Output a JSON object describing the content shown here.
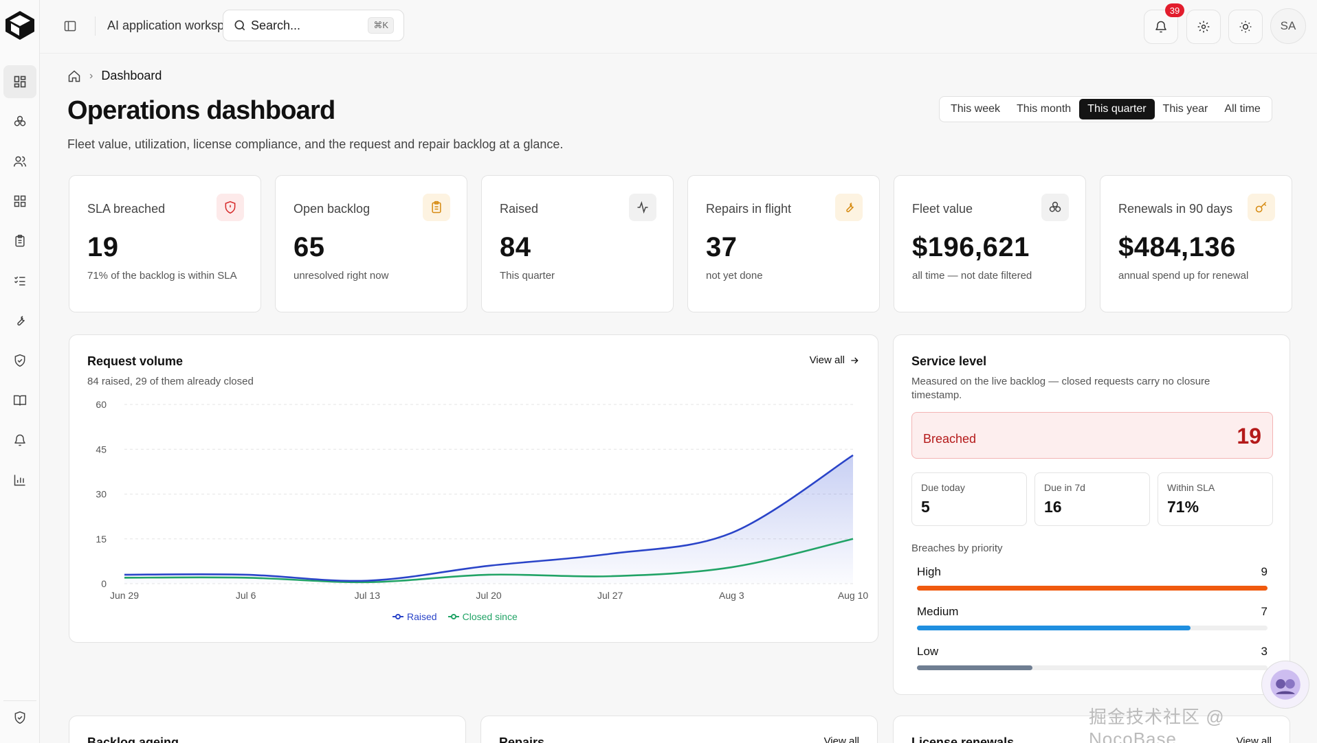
{
  "topbar": {
    "workspace_title": "AI application workspace",
    "search_placeholder": "Search...",
    "search_shortcut": "⌘K",
    "notification_count": "39",
    "avatar_initials": "SA"
  },
  "breadcrumb": {
    "current": "Dashboard"
  },
  "page": {
    "title": "Operations dashboard",
    "subtitle": "Fleet value, utilization, license compliance, and the request and repair backlog at a glance."
  },
  "range_options": [
    "This week",
    "This month",
    "This quarter",
    "This year",
    "All time"
  ],
  "range_selected": "This quarter",
  "kpis": [
    {
      "label": "SLA breached",
      "value": "19",
      "note": "71% of the backlog is within SLA",
      "icon": "shield-alert-icon",
      "tint": "#fdeaea",
      "color": "#d62828"
    },
    {
      "label": "Open backlog",
      "value": "65",
      "note": "unresolved right now",
      "icon": "clipboard-icon",
      "tint": "#fdf3e1",
      "color": "#d68a10"
    },
    {
      "label": "Raised",
      "value": "84",
      "note": "This quarter",
      "icon": "activity-icon",
      "tint": "#f1f1f1",
      "color": "#444444"
    },
    {
      "label": "Repairs in flight",
      "value": "37",
      "note": "not yet done",
      "icon": "wrench-icon",
      "tint": "#fdf3e1",
      "color": "#d68a10"
    },
    {
      "label": "Fleet value",
      "value": "$196,621",
      "note": "all time — not date filtered",
      "icon": "boxes-icon",
      "tint": "#f1f1f1",
      "color": "#444444"
    },
    {
      "label": "Renewals in 90 days",
      "value": "$484,136",
      "note": "annual spend up for renewal",
      "icon": "key-icon",
      "tint": "#fdf3e1",
      "color": "#d68a10"
    }
  ],
  "request_volume": {
    "title": "Request volume",
    "subtitle": "84 raised, 29 of them already closed",
    "view_all": "View all"
  },
  "chart_data": {
    "type": "line",
    "title": "",
    "xlabel": "",
    "ylabel": "",
    "x": [
      "Jun 29",
      "Jul 6",
      "Jul 13",
      "Jul 20",
      "Jul 27",
      "Aug 3",
      "Aug 10"
    ],
    "yticks": [
      0,
      15,
      30,
      45,
      60
    ],
    "ylim": [
      0,
      60
    ],
    "grid": true,
    "legend_position": "bottom-center",
    "series": [
      {
        "name": "Raised",
        "color": "#2a44c8",
        "values": [
          3,
          3,
          1,
          6,
          10,
          17,
          43
        ]
      },
      {
        "name": "Closed since",
        "color": "#21a366",
        "values": [
          2,
          2,
          0.5,
          3,
          2.5,
          5.5,
          15
        ]
      }
    ]
  },
  "service_level": {
    "title": "Service level",
    "subtitle": "Measured on the live backlog — closed requests carry no closure timestamp.",
    "breached_label": "Breached",
    "breached_value": "19",
    "due_today_label": "Due today",
    "due_today_value": "5",
    "due_7d_label": "Due in 7d",
    "due_7d_value": "16",
    "within_label": "Within SLA",
    "within_value": "71%",
    "priority_heading": "Breaches by priority",
    "priorities": [
      {
        "label": "High",
        "value": "9",
        "fraction": 1.0,
        "color": "#f05a0e"
      },
      {
        "label": "Medium",
        "value": "7",
        "fraction": 0.78,
        "color": "#1f8fe0"
      },
      {
        "label": "Low",
        "value": "3",
        "fraction": 0.33,
        "color": "#6f7e92"
      }
    ]
  },
  "bottom_cards": {
    "backlog_ageing": "Backlog ageing",
    "repairs": "Repairs",
    "repairs_view_all": "View all",
    "license_renewals": "License renewals",
    "license_view_all": "View all"
  },
  "watermark": "掘金技术社区 @ NocoBase"
}
